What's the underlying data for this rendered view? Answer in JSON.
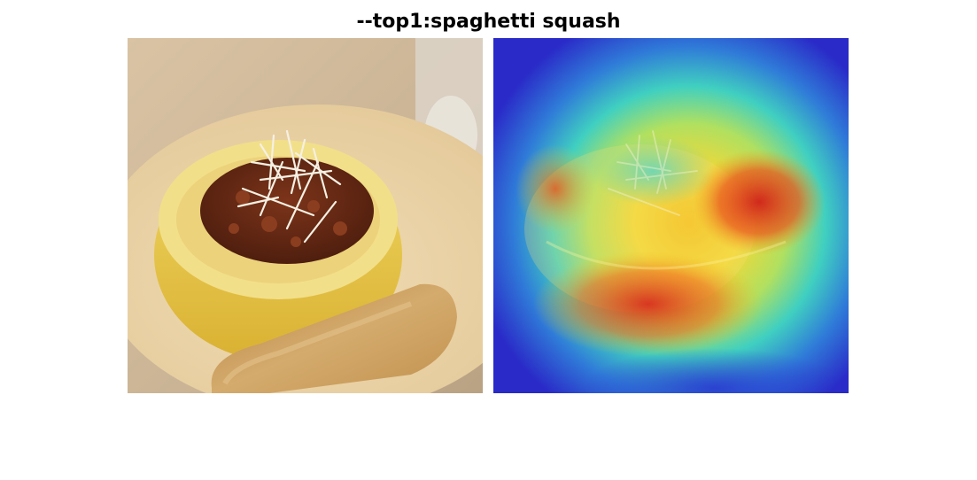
{
  "figure": {
    "title": "--top1:spaghetti squash"
  },
  "panels": [
    {
      "name": "original-photo",
      "subject": "spaghetti squash boat with meat sauce and shredded cheese, toasted bread slice on plate"
    },
    {
      "name": "heatmap-overlay",
      "subject": "class activation heatmap overlay (jet colormap) over same photo"
    }
  ],
  "colors": {
    "background": "#ffffff",
    "plate": "#e9d2a8",
    "squash_rind": "#e8c94a",
    "squash_flesh": "#f2df8a",
    "meat_sauce": "#6b2a14",
    "cheese": "#f4efe2",
    "toast": "#caa065",
    "heat_low": "#3a2fd0",
    "heat_mid": "#35d0c0",
    "heat_warm": "#f2e030",
    "heat_high": "#e8321a"
  }
}
